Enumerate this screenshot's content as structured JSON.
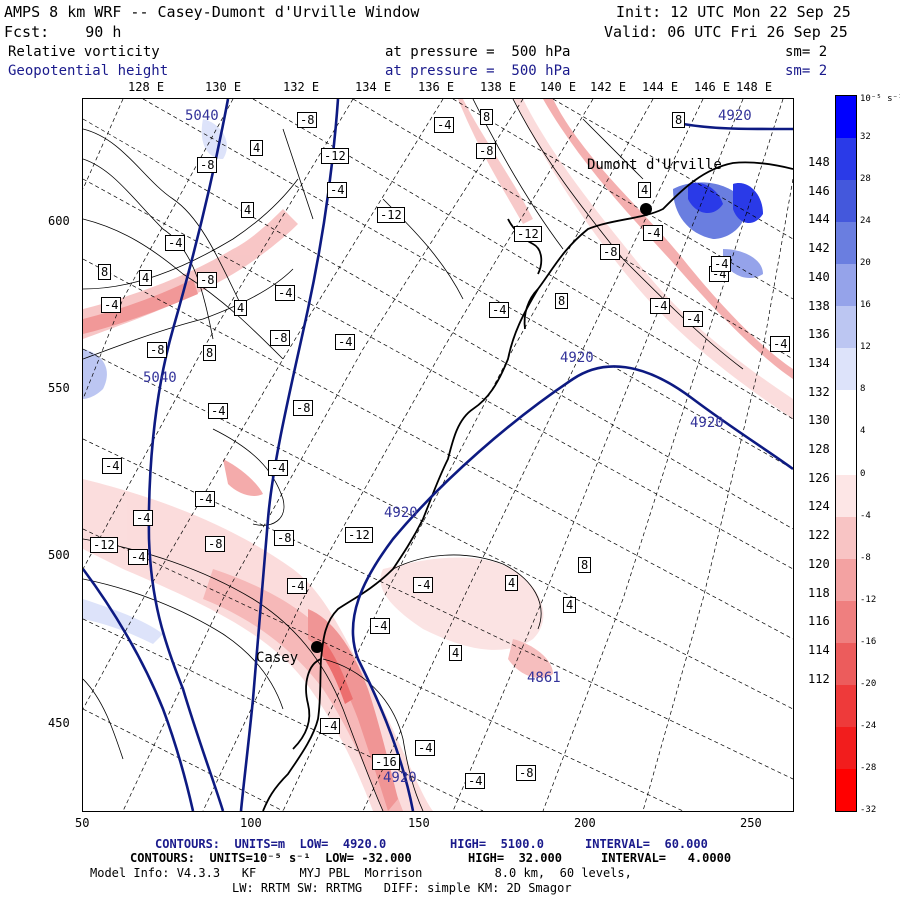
{
  "header": {
    "line1_left": "AMPS 8 km WRF -- Casey-Dumont d'Urville Window",
    "line1_right": "Init: 12 UTC Mon 22 Sep 25",
    "line2_left": "Fcst:    90 h",
    "line2_right": "Valid: 06 UTC Fri 26 Sep 25",
    "field1_name": "Relative vorticity",
    "field1_level": "at pressure =  500 hPa",
    "field1_sm": "sm= 2",
    "field2_name": "Geopotential height",
    "field2_level": "at pressure =  500 hPa",
    "field2_sm": "sm= 2"
  },
  "top_lon_labels": [
    "128 E",
    "130 E",
    "132 E",
    "134 E",
    "136 E",
    "138 E",
    "140 E",
    "142 E",
    "144 E",
    "146 E",
    "148 E"
  ],
  "right_lat_labels": [
    "148 E",
    "146 E",
    "144 E",
    "142 E",
    "140 E",
    "138 E",
    "136 E",
    "134 E",
    "132 E",
    "130 E",
    "128 E",
    "126 E",
    "124 E",
    "122 E",
    "120 E",
    "118 E",
    "116 E",
    "114 E",
    "112 E"
  ],
  "y_ticks": [
    "600",
    "550",
    "500",
    "450"
  ],
  "x_ticks": [
    "50",
    "100",
    "150",
    "200",
    "250"
  ],
  "colorbar": {
    "unit_label": "10⁻⁵ s⁻¹",
    "labels": [
      "32",
      "28",
      "24",
      "20",
      "16",
      "12",
      "8",
      "4",
      "0",
      "-4",
      "-8",
      "-12",
      "-16",
      "-20",
      "-24",
      "-28",
      "-32"
    ],
    "colors": [
      "#0000ff",
      "#2a3ae8",
      "#4458dc",
      "#6a7ee0",
      "#95a3ea",
      "#bcc6f2",
      "#dde3fa",
      "#ffffff",
      "#ffffff",
      "#fde6e6",
      "#f8c4c4",
      "#f3a2a2",
      "#ef7f7f",
      "#ec5c5c",
      "#ee3a3a",
      "#f21d1d",
      "#ff0000"
    ]
  },
  "places": {
    "dumont": "Dumont d'Urville",
    "casey": "Casey"
  },
  "vort_labels": [
    "-8",
    "-12",
    "4",
    "-4",
    "8",
    "-8",
    "-4",
    "-12",
    "-8",
    "4",
    "-4",
    "8",
    "4",
    "-8",
    "-12",
    "-4",
    "-8",
    "4",
    "-4",
    "-4",
    "-8",
    "-4",
    "8",
    "-4",
    "-8",
    "-4",
    "-4",
    "-4",
    "-12",
    "-4",
    "-4",
    "-8",
    "-8",
    "-12",
    "-4",
    "-4",
    "-16",
    "-4",
    "-4",
    "-4",
    "-4",
    "-8",
    "4",
    "4",
    "8",
    "4",
    "8",
    "4",
    "-4",
    "-8",
    "-4",
    "8",
    "-4",
    "-4",
    "-4",
    "-4"
  ],
  "hgt_labels": [
    "5040",
    "4920",
    "5040",
    "4920",
    "4920",
    "4920",
    "4861",
    "4920"
  ],
  "footer": {
    "line1_a": "CONTOURS:  UNITS=m  LOW=  4920.0",
    "line1_b": "HIGH=  5100.0",
    "line1_c": "INTERVAL=  60.000",
    "line2_a": "CONTOURS:  UNITS=10⁻⁵ s⁻¹  LOW= -32.000",
    "line2_b": "HIGH=  32.000",
    "line2_c": "INTERVAL=   4.0000",
    "line3": "Model Info: V4.3.3   KF      MYJ PBL  Morrison          8.0 km,  60 levels,",
    "line4": "LW: RRTM SW: RRTMG   DIFF: simple KM: 2D Smagor"
  }
}
